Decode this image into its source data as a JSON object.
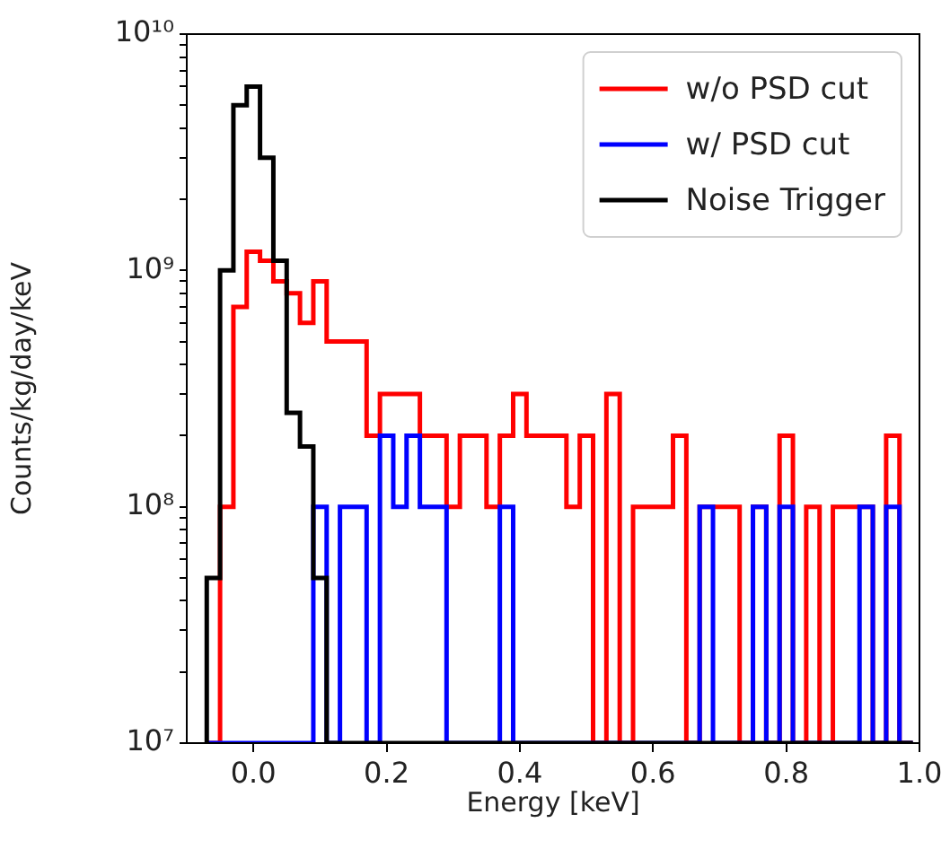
{
  "chart_data": {
    "type": "histogram",
    "xlabel": "Energy [keV]",
    "ylabel": "Counts/kg/day/keV",
    "bins": [
      -0.07,
      -0.05,
      -0.03,
      -0.01,
      0.01,
      0.03,
      0.05,
      0.07,
      0.09,
      0.11,
      0.13,
      0.15,
      0.17,
      0.19,
      0.21,
      0.23,
      0.25,
      0.27,
      0.29,
      0.31,
      0.33,
      0.35,
      0.37,
      0.39,
      0.41,
      0.43,
      0.45,
      0.47,
      0.49,
      0.51,
      0.53,
      0.55,
      0.57,
      0.59,
      0.61,
      0.63,
      0.65,
      0.67,
      0.69,
      0.71,
      0.73,
      0.75,
      0.77,
      0.79,
      0.81,
      0.83,
      0.85,
      0.87,
      0.89,
      0.91,
      0.93,
      0.95,
      0.97,
      0.99
    ],
    "series": [
      {
        "name": "w/o PSD cut",
        "color": "#ff0000",
        "values": [
          null,
          100000000.0,
          700000000.0,
          1200000000.0,
          1100000000.0,
          900000000.0,
          800000000.0,
          600000000.0,
          900000000.0,
          500000000.0,
          500000000.0,
          500000000.0,
          200000000.0,
          300000000.0,
          300000000.0,
          300000000.0,
          200000000.0,
          200000000.0,
          100000000.0,
          200000000.0,
          200000000.0,
          100000000.0,
          200000000.0,
          300000000.0,
          200000000.0,
          200000000.0,
          200000000.0,
          100000000.0,
          200000000.0,
          null,
          300000000.0,
          null,
          100000000.0,
          100000000.0,
          100000000.0,
          200000000.0,
          null,
          100000000.0,
          100000000.0,
          100000000.0,
          null,
          100000000.0,
          null,
          200000000.0,
          null,
          100000000.0,
          null,
          100000000.0,
          100000000.0,
          100000000.0,
          null,
          200000000.0,
          null
        ]
      },
      {
        "name": "w/ PSD cut",
        "color": "#0000ff",
        "values": [
          null,
          null,
          null,
          null,
          null,
          null,
          null,
          null,
          100000000.0,
          null,
          100000000.0,
          100000000.0,
          null,
          200000000.0,
          100000000.0,
          200000000.0,
          100000000.0,
          100000000.0,
          null,
          null,
          null,
          null,
          100000000.0,
          null,
          null,
          null,
          null,
          null,
          null,
          null,
          null,
          null,
          null,
          null,
          null,
          null,
          null,
          100000000.0,
          null,
          null,
          null,
          100000000.0,
          null,
          100000000.0,
          null,
          null,
          null,
          null,
          null,
          100000000.0,
          null,
          100000000.0,
          null
        ]
      },
      {
        "name": "Noise Trigger",
        "color": "#000000",
        "values": [
          50000000.0,
          1000000000.0,
          5000000000.0,
          6000000000.0,
          3000000000.0,
          1100000000.0,
          250000000.0,
          180000000.0,
          50000000.0,
          null,
          null,
          null,
          null,
          null,
          null,
          null,
          null,
          null,
          null,
          null,
          null,
          null,
          null,
          null,
          null,
          null,
          null,
          null,
          null,
          null,
          null,
          null,
          null,
          null,
          null,
          null,
          null,
          null,
          null,
          null,
          null,
          null,
          null,
          null,
          null,
          null,
          null,
          null,
          null,
          null,
          null,
          null,
          null
        ]
      }
    ],
    "xlim": [
      -0.1,
      1.0
    ],
    "xticks": [
      {
        "value": 0,
        "label": "0.0"
      },
      {
        "value": 0.2,
        "label": "0.2"
      },
      {
        "value": 0.4,
        "label": "0.4"
      },
      {
        "value": 0.6,
        "label": "0.6"
      },
      {
        "value": 0.8,
        "label": "0.8"
      },
      {
        "value": 1,
        "label": "1.0"
      }
    ],
    "ylim": [
      10000000.0,
      10000000000.0
    ],
    "yticks": [
      {
        "value": 10000000.0,
        "label": "10⁷"
      },
      {
        "value": 20000000.0,
        "label": null
      },
      {
        "value": 30000000.0,
        "label": null
      },
      {
        "value": 40000000.0,
        "label": null
      },
      {
        "value": 50000000.0,
        "label": null
      },
      {
        "value": 60000000.0,
        "label": null
      },
      {
        "value": 70000000.0,
        "label": null
      },
      {
        "value": 80000000.0,
        "label": null
      },
      {
        "value": 90000000.0,
        "label": null
      },
      {
        "value": 100000000.0,
        "label": "10⁸"
      },
      {
        "value": 200000000.0,
        "label": null
      },
      {
        "value": 300000000.0,
        "label": null
      },
      {
        "value": 400000000.0,
        "label": null
      },
      {
        "value": 500000000.0,
        "label": null
      },
      {
        "value": 600000000.0,
        "label": null
      },
      {
        "value": 700000000.0,
        "label": null
      },
      {
        "value": 800000000.0,
        "label": null
      },
      {
        "value": 900000000.0,
        "label": null
      },
      {
        "value": 1000000000.0,
        "label": "10⁹"
      },
      {
        "value": 2000000000.0,
        "label": null
      },
      {
        "value": 3000000000.0,
        "label": null
      },
      {
        "value": 4000000000.0,
        "label": null
      },
      {
        "value": 5000000000.0,
        "label": null
      },
      {
        "value": 6000000000.0,
        "label": null
      },
      {
        "value": 7000000000.0,
        "label": null
      },
      {
        "value": 8000000000.0,
        "label": null
      },
      {
        "value": 9000000000.0,
        "label": null
      },
      {
        "value": 10000000000.0,
        "label": "10¹⁰"
      }
    ],
    "log": "y",
    "grid": false,
    "legend": "top right"
  }
}
